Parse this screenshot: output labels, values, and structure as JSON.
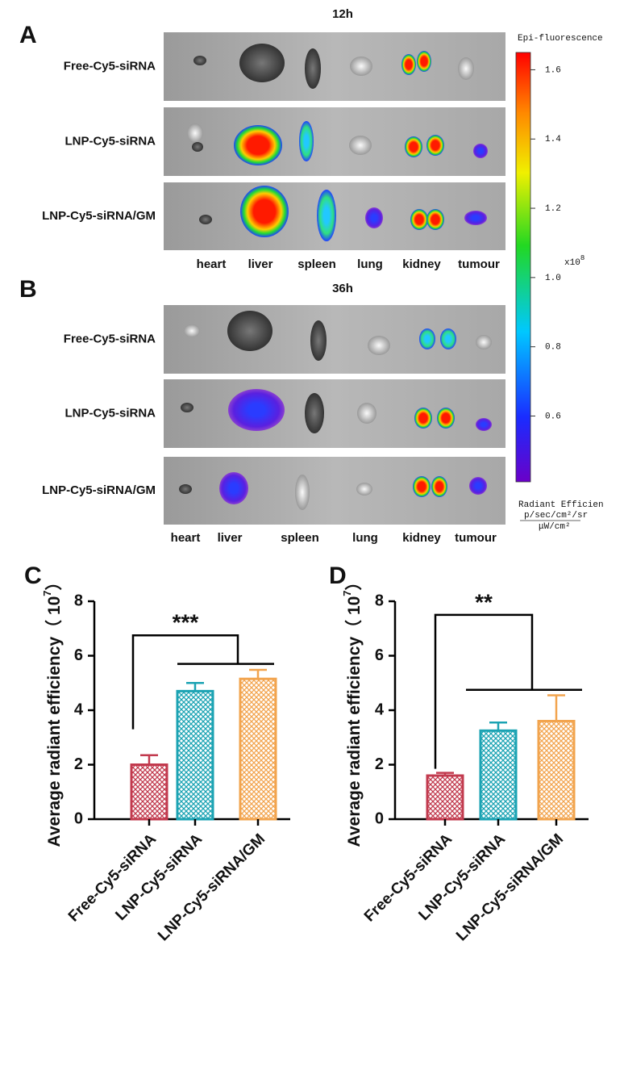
{
  "imaging": {
    "panels": [
      {
        "letter": "A",
        "time": "12h",
        "rows": [
          "Free-Cy5-siRNA",
          "LNP-Cy5-siRNA",
          "LNP-Cy5-siRNA/GM"
        ],
        "organs": [
          "heart",
          "liver",
          "spleen",
          "lung",
          "kidney",
          "tumour"
        ]
      },
      {
        "letter": "B",
        "time": "36h",
        "rows": [
          "Free-Cy5-siRNA",
          "LNP-Cy5-siRNA",
          "LNP-Cy5-siRNA/GM"
        ],
        "organs": [
          "heart",
          "liver",
          "spleen",
          "lung",
          "kidney",
          "tumour"
        ]
      }
    ],
    "colorbar": {
      "title": "Epi-fluorescence",
      "lim": [
        0.41,
        1.65
      ],
      "ticks": [
        0.6,
        0.8,
        {
          "value": 1,
          "label": "1.0"
        },
        1.2,
        1.4,
        1.6
      ],
      "scale": "x10",
      "scale_exp": "8",
      "units_title": "Radiant Efficien",
      "units_num": "p/sec/cm²/sr",
      "units_den": "μW/cm²"
    }
  },
  "chart_data": [
    {
      "type": "bar",
      "panel": "C",
      "categories": [
        "Free-Cy5-siRNA",
        "LNP-Cy5-siRNA",
        "LNP-Cy5-siRNA/GM"
      ],
      "values": [
        2.0,
        4.7,
        5.15
      ],
      "errors": [
        0.35,
        0.3,
        0.33
      ],
      "colors": [
        "#c23a4e",
        "#1ba3b3",
        "#f2a44e"
      ],
      "ylabel": "Average radiant efficiency（ 10",
      "ylabel_exp": "7",
      "ylabel_end": "）",
      "ylim": [
        0,
        8
      ],
      "yticks": [
        0,
        2,
        4,
        6,
        8
      ],
      "annotation": "***"
    },
    {
      "type": "bar",
      "panel": "D",
      "categories": [
        "Free-Cy5-siRNA",
        "LNP-Cy5-siRNA",
        "LNP-Cy5-siRNA/GM"
      ],
      "values": [
        1.6,
        3.25,
        3.6
      ],
      "errors": [
        0.1,
        0.3,
        0.95
      ],
      "colors": [
        "#c23a4e",
        "#1ba3b3",
        "#f2a44e"
      ],
      "ylabel": "Average radiant efficiency（ 10",
      "ylabel_exp": "7",
      "ylabel_end": "）",
      "ylim": [
        0,
        8
      ],
      "yticks": [
        0,
        2,
        4,
        6,
        8
      ],
      "annotation": "**"
    }
  ]
}
